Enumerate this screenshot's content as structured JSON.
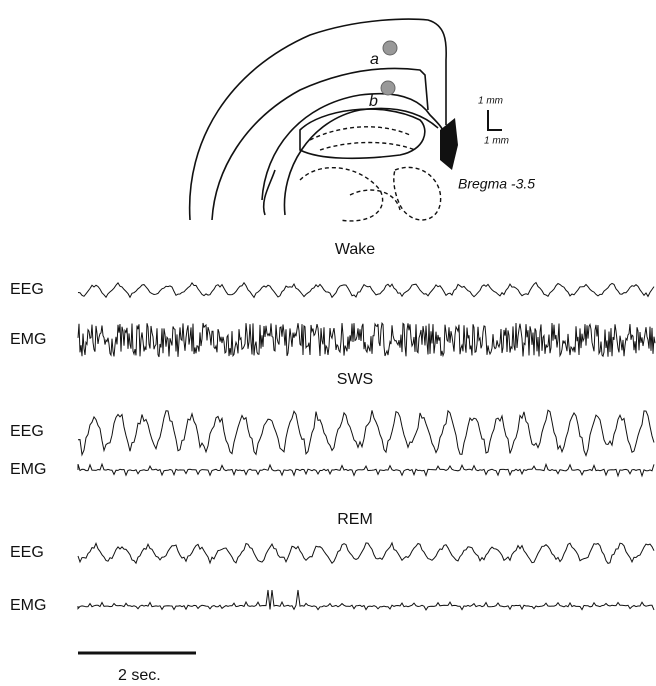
{
  "brain_diagram": {
    "site_labels": [
      "a",
      "b"
    ],
    "scale_bar": {
      "vertical": "1 mm",
      "horizontal": "1 mm"
    },
    "coordinate": "Bregma -3.5"
  },
  "recordings": [
    {
      "state": "Wake",
      "traces": [
        "EEG",
        "EMG"
      ]
    },
    {
      "state": "SWS",
      "traces": [
        "EEG",
        "EMG"
      ]
    },
    {
      "state": "REM",
      "traces": [
        "EEG",
        "EMG"
      ]
    }
  ],
  "time_scale": "2 sec."
}
